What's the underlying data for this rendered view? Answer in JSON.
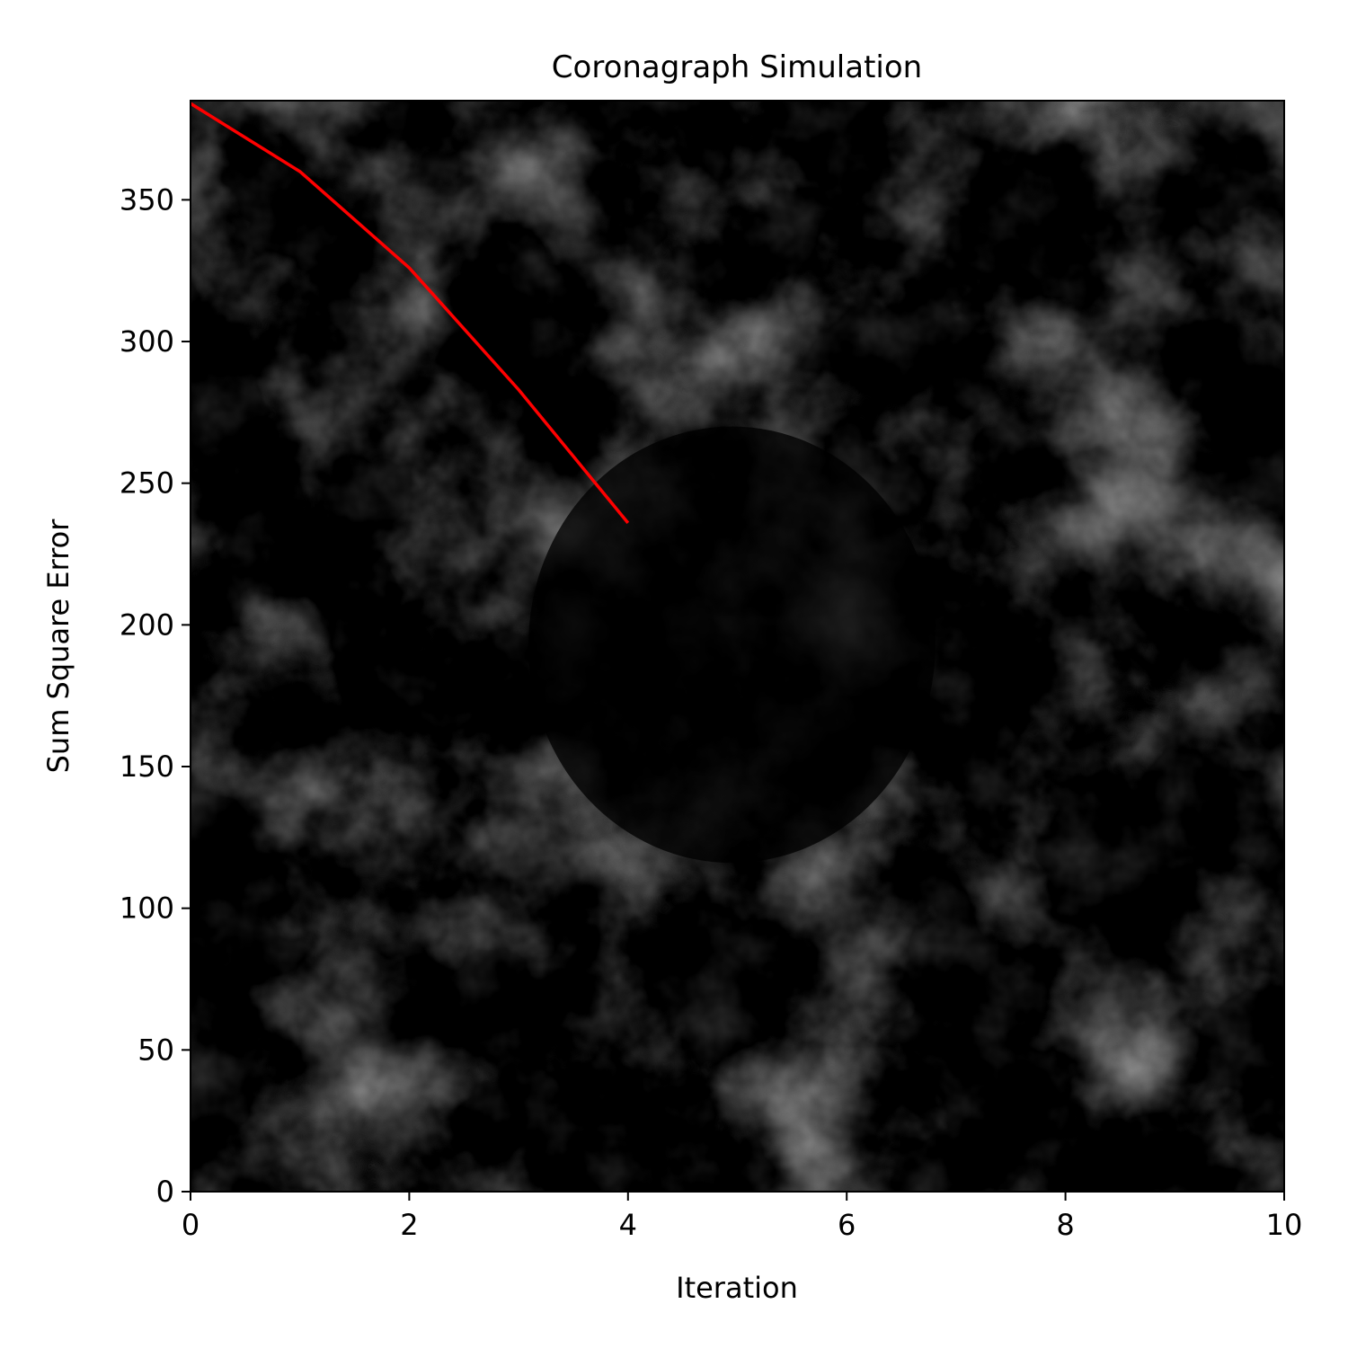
{
  "chart_data": {
    "type": "line",
    "title": "Coronagraph Simulation",
    "xlabel": "Iteration",
    "ylabel": "Sum Square Error",
    "xlim": [
      0,
      10
    ],
    "ylim": [
      0,
      385
    ],
    "xticks": [
      0,
      2,
      4,
      6,
      8,
      10
    ],
    "yticks": [
      0,
      50,
      100,
      150,
      200,
      250,
      300,
      350
    ],
    "grid": false,
    "legend": "none",
    "background": "grayscale-cloud-noise-image",
    "occulter_disk": {
      "center": [
        4.95,
        193
      ],
      "radius_x": 1.86,
      "radius_y": 77
    },
    "series": [
      {
        "color": "#ff0000",
        "x": [
          0,
          1,
          2,
          3,
          4
        ],
        "y": [
          384,
          360,
          326,
          283,
          236
        ]
      }
    ]
  }
}
